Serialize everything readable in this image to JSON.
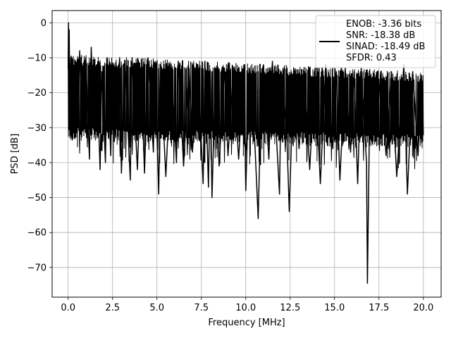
{
  "chart_data": {
    "type": "line",
    "title": "",
    "xlabel": "Frequency [MHz]",
    "ylabel": "PSD [dB]",
    "xlim": [
      -0.9,
      21.0
    ],
    "ylim": [
      -78.5,
      3.5
    ],
    "x_ticks": [
      0.0,
      2.5,
      5.0,
      7.5,
      10.0,
      12.5,
      15.0,
      17.5,
      20.0
    ],
    "x_tick_labels": [
      "0.0",
      "2.5",
      "5.0",
      "7.5",
      "10.0",
      "12.5",
      "15.0",
      "17.5",
      "20.0"
    ],
    "y_ticks": [
      0,
      -10,
      -20,
      -30,
      -40,
      -50,
      -60,
      -70
    ],
    "y_tick_labels": [
      "0",
      "−10",
      "−20",
      "−30",
      "−40",
      "−50",
      "−60",
      "−70"
    ],
    "grid": true,
    "legend_position": "top-right",
    "legend_lines": [
      "ENOB: -3.36 bits",
      "SNR: -18.38 dB",
      "SINAD: -18.49 dB",
      "SFDR: 0.43"
    ],
    "series": [
      {
        "color": "#000000",
        "line_width": 1.5,
        "x_range": [
          0.0,
          20.0
        ],
        "baseline_upper_start": -9,
        "baseline_upper_end": -14,
        "baseline_lower_start": -30,
        "baseline_lower_end": -32,
        "x": [
          0.0,
          0.02,
          0.04,
          0.06,
          0.1,
          0.15,
          0.2,
          0.3,
          0.35,
          0.45,
          0.55,
          0.65,
          0.8,
          1.0,
          1.2,
          1.3,
          1.45,
          1.6,
          1.8,
          1.9,
          2.1,
          2.2,
          2.4,
          2.5,
          2.6,
          2.9,
          3.0,
          3.2,
          3.5,
          3.6,
          3.9,
          4.1,
          4.3,
          4.5,
          4.8,
          4.9,
          5.1,
          5.2,
          5.5,
          5.8,
          6.1,
          6.2,
          6.5,
          6.8,
          7.0,
          7.3,
          7.6,
          7.7,
          7.9,
          8.0,
          8.1,
          8.3,
          8.5,
          8.8,
          9.0,
          9.3,
          9.6,
          9.9,
          10.0,
          10.2,
          10.5,
          10.7,
          10.9,
          11.0,
          11.3,
          11.5,
          11.9,
          12.0,
          12.3,
          12.45,
          12.7,
          13.0,
          13.3,
          13.6,
          13.9,
          14.2,
          14.5,
          14.9,
          15.1,
          15.3,
          15.6,
          15.9,
          16.1,
          16.3,
          16.5,
          16.8,
          16.85,
          17.0,
          17.3,
          17.6,
          17.9,
          18.2,
          18.5,
          18.9,
          19.1,
          19.4,
          19.7,
          19.9,
          20.0
        ],
        "y": [
          -13.0,
          0.0,
          -20.0,
          -2.0,
          -26.0,
          -10.0,
          -24.0,
          -14.0,
          -32.0,
          -12.0,
          -30.0,
          -8.0,
          -31.0,
          -11.0,
          -39.0,
          -7.0,
          -30.0,
          -12.0,
          -42.0,
          -14.0,
          -40.0,
          -10.0,
          -38.0,
          -12.0,
          -34.0,
          -10.0,
          -43.0,
          -11.0,
          -45.0,
          -10.0,
          -42.0,
          -13.0,
          -43.0,
          -10.0,
          -37.0,
          -14.0,
          -49.0,
          -12.0,
          -44.0,
          -12.0,
          -40.0,
          -11.0,
          -41.0,
          -13.0,
          -37.0,
          -12.0,
          -46.0,
          -11.0,
          -47.0,
          -15.0,
          -50.0,
          -13.0,
          -41.0,
          -13.0,
          -38.0,
          -14.0,
          -39.0,
          -12.0,
          -48.0,
          -13.0,
          -33.0,
          -56.0,
          -14.0,
          -12.0,
          -39.0,
          -11.0,
          -49.0,
          -14.0,
          -30.0,
          -54.0,
          -13.0,
          -36.0,
          -14.0,
          -42.0,
          -13.0,
          -46.0,
          -12.0,
          -36.0,
          -14.0,
          -45.0,
          -13.0,
          -37.0,
          -14.0,
          -46.0,
          -13.0,
          -40.0,
          -74.5,
          -15.0,
          -34.0,
          -14.0,
          -38.0,
          -14.0,
          -44.0,
          -12.0,
          -49.0,
          -14.0,
          -38.0,
          -15.0,
          -32.0
        ]
      }
    ]
  }
}
